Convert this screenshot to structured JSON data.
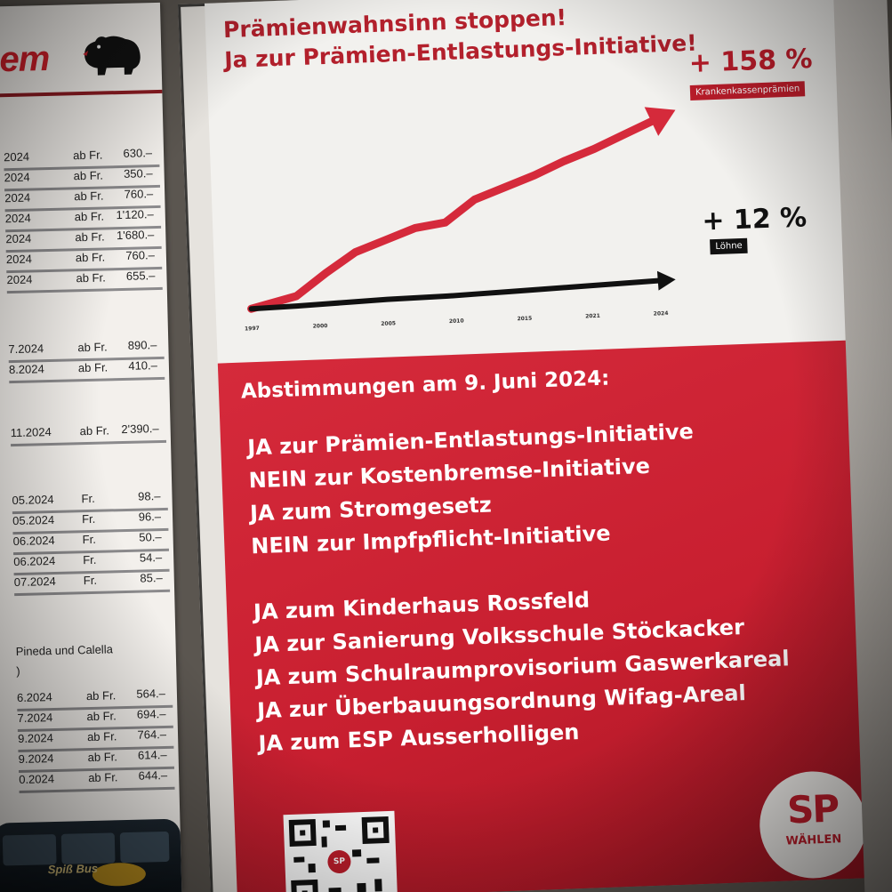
{
  "left_sheet": {
    "logo_text": "em",
    "prices_group_1": [
      {
        "date": "2024",
        "prefix": "ab Fr.",
        "price": "630.–"
      },
      {
        "date": "2024",
        "prefix": "ab Fr.",
        "price": "350.–"
      },
      {
        "date": "2024",
        "prefix": "ab Fr.",
        "price": "760.–"
      },
      {
        "date": "2024",
        "prefix": "ab Fr.",
        "price": "1'120.–"
      },
      {
        "date": "2024",
        "prefix": "ab Fr.",
        "price": "1'680.–"
      },
      {
        "date": "2024",
        "prefix": "ab Fr.",
        "price": "760.–"
      },
      {
        "date": "2024",
        "prefix": "ab Fr.",
        "price": "655.–"
      }
    ],
    "prices_group_2": [
      {
        "date": "7.2024",
        "prefix": "ab Fr.",
        "price": "890.–"
      },
      {
        "date": "8.2024",
        "prefix": "ab Fr.",
        "price": "410.–"
      }
    ],
    "prices_group_3": [
      {
        "date": "11.2024",
        "prefix": "ab Fr.",
        "price": "2'390.–"
      }
    ],
    "prices_group_4": [
      {
        "date": "05.2024",
        "prefix": "Fr.",
        "price": "98.–"
      },
      {
        "date": "05.2024",
        "prefix": "Fr.",
        "price": "96.–"
      },
      {
        "date": "06.2024",
        "prefix": "Fr.",
        "price": "50.–"
      },
      {
        "date": "06.2024",
        "prefix": "Fr.",
        "price": "54.–"
      },
      {
        "date": "07.2024",
        "prefix": "Fr.",
        "price": "85.–"
      }
    ],
    "note_line_1": "Pineda und Calella",
    "note_line_2": ")",
    "prices_group_5": [
      {
        "date": "6.2024",
        "prefix": "ab Fr.",
        "price": "564.–"
      },
      {
        "date": "7.2024",
        "prefix": "ab Fr.",
        "price": "694.–"
      },
      {
        "date": "9.2024",
        "prefix": "ab Fr.",
        "price": "764.–"
      },
      {
        "date": "9.2024",
        "prefix": "ab Fr.",
        "price": "614.–"
      },
      {
        "date": "0.2024",
        "prefix": "ab Fr.",
        "price": "644.–"
      }
    ],
    "bus_text": "Spiß Bus"
  },
  "poster": {
    "headline_1": "Prämienwahnsinn stoppen!",
    "headline_2": "Ja zur Prämien-Entlastungs-Initiative!",
    "premium_pct": "+ 158 %",
    "premium_label": "Krankenkassenprämien",
    "wage_pct": "+ 12 %",
    "wage_label": "Löhne",
    "vote_title": "Abstimmungen am 9. Juni 2024:",
    "national_votes": [
      "JA zur Prämien-Entlastungs-Initiative",
      "NEIN zur Kostenbremse-Initiative",
      "JA zum Stromgesetz",
      "NEIN zur Impfpflicht-Initiative"
    ],
    "local_votes": [
      "JA zum Kinderhaus Rossfeld",
      "JA zur Sanierung Volksschule Stöckacker",
      "JA zum Schulraumprovisorium Gaswerkareal",
      "JA zur Überbauungsordnung Wifag-Areal",
      "JA zum ESP Ausserholligen"
    ],
    "qr_badge": "SP",
    "logo_main": "SP",
    "logo_sub": "WÄHLEN",
    "colors": {
      "red": "#c81f30",
      "dark": "#111111",
      "white": "#f2f1ee"
    }
  },
  "chart_data": {
    "type": "line",
    "x_tick_labels": [
      "1997",
      "2000",
      "2005",
      "2010",
      "2015",
      "2021",
      "2024"
    ],
    "x": [
      1997,
      2000,
      2002,
      2004,
      2006,
      2008,
      2010,
      2012,
      2014,
      2016,
      2018,
      2020,
      2022,
      2024
    ],
    "series": [
      {
        "name": "Krankenkassenprämien",
        "color": "#d52a3b",
        "values": [
          0,
          10,
          30,
          48,
          58,
          68,
          72,
          92,
          102,
          112,
          124,
          134,
          146,
          158
        ]
      },
      {
        "name": "Löhne",
        "color": "#111111",
        "values": [
          0,
          1,
          2,
          3,
          4,
          4.5,
          5,
          6,
          7,
          8,
          9,
          10,
          11,
          12
        ]
      }
    ],
    "ylim": [
      0,
      170
    ]
  }
}
